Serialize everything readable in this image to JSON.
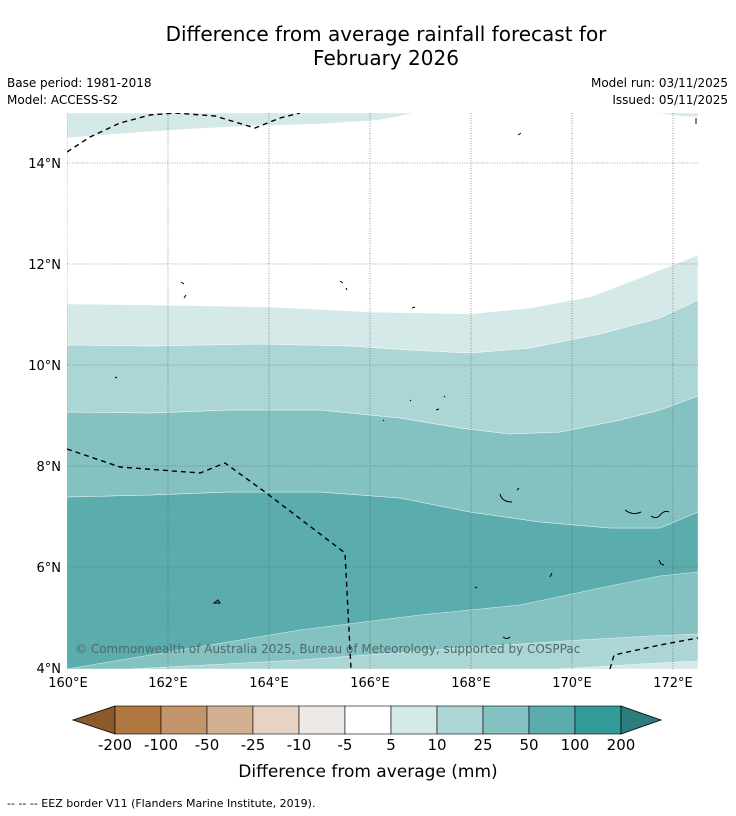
{
  "title_line1": "Difference from average rainfall forecast for",
  "title_line2": "February 2026",
  "base_period": "Base period: 1981-2018",
  "model": "Model: ACCESS-S2",
  "model_run": "Model run: 03/11/2025",
  "issued": "Issued: 05/11/2025",
  "lat_labels": [
    "14°N",
    "12°N",
    "10°N",
    "8°N",
    "6°N",
    "4°N"
  ],
  "lon_labels": [
    "160°E",
    "162°E",
    "164°E",
    "166°E",
    "168°E",
    "170°E",
    "172°E"
  ],
  "copyright": "© Commonwealth of Australia 2025, Bureau of Meteorology, supported by COSPPac",
  "colorbar": {
    "title": "Difference from average (mm)",
    "tick_labels": [
      "-200",
      "-100",
      "-50",
      "-25",
      "-10",
      "-5",
      "5",
      "10",
      "25",
      "50",
      "100",
      "200"
    ],
    "colors": [
      "#8b5a2b",
      "#b07840",
      "#c4956a",
      "#d4b092",
      "#e8d3c2",
      "#ede9e6",
      "#ffffff",
      "#d5e9e8",
      "#acd6d5",
      "#84c1c1",
      "#5aacad",
      "#349b9b",
      "#2e7d7e"
    ]
  },
  "footnote": "-- -- -- EEZ border V11 (Flanders Marine Institute, 2019)."
}
